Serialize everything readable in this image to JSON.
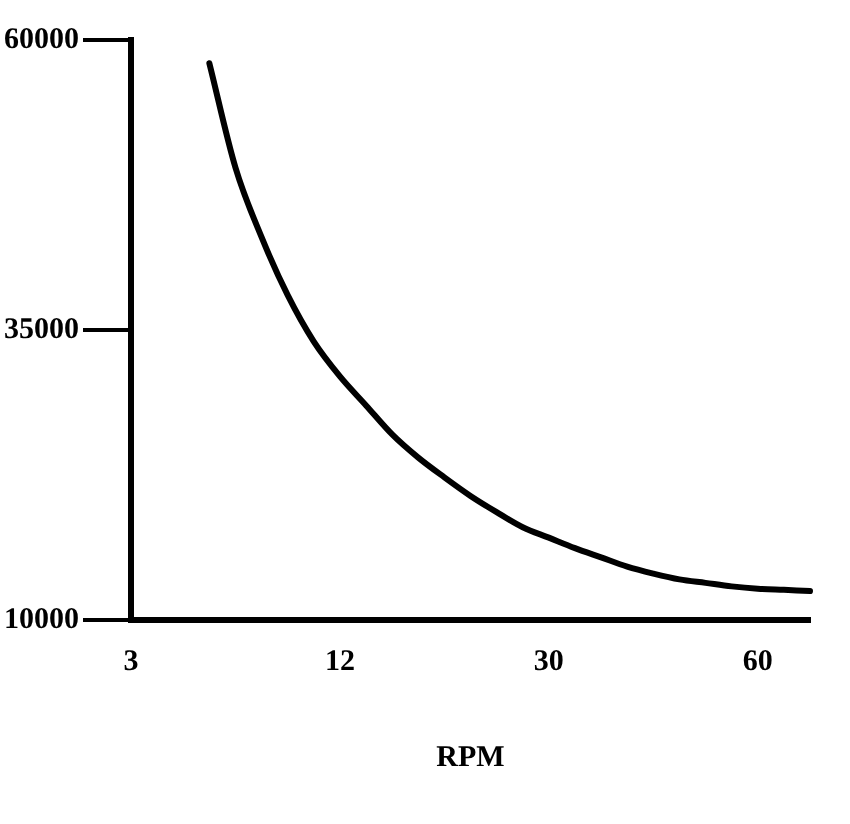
{
  "chart_data": {
    "type": "line",
    "xlabel": "RPM",
    "categories": [
      "3",
      null,
      null,
      null,
      null,
      null,
      null,
      null,
      "12",
      null,
      null,
      null,
      null,
      null,
      null,
      null,
      "30",
      null,
      null,
      null,
      null,
      null,
      null,
      null,
      "60",
      null,
      null
    ],
    "series": [
      {
        "color": "#000000",
        "values": [
          null,
          null,
          null,
          58000,
          49000,
          43000,
          38000,
          34000,
          31000,
          28500,
          26000,
          24000,
          22300,
          20700,
          19300,
          18000,
          17100,
          16200,
          15400,
          14600,
          14000,
          13500,
          13200,
          12900,
          12700,
          12600,
          12500
        ]
      }
    ],
    "ylim": [
      10000,
      60000
    ],
    "yticks": [
      10000,
      35000,
      60000
    ],
    "grid": false,
    "legend": false,
    "marker": "none",
    "line_style": "solid"
  }
}
